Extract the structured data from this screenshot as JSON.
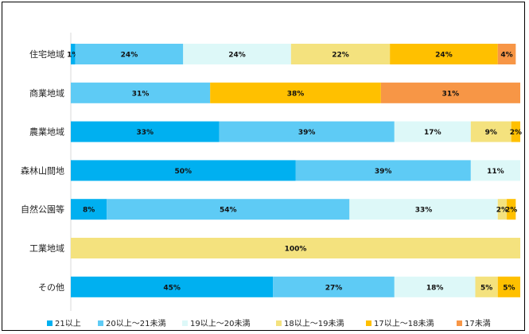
{
  "chart_data": {
    "type": "bar",
    "orientation": "horizontal",
    "stacked": "percent",
    "categories": [
      "住宅地域",
      "商業地域",
      "農業地域",
      "森林山間地",
      "自然公園等",
      "工業地域",
      "その他"
    ],
    "series": [
      {
        "name": "21以上",
        "color": "#00B0F0",
        "values": [
          1,
          0,
          33,
          50,
          8,
          0,
          45
        ]
      },
      {
        "name": "20以上～21未満",
        "color": "#5ECBF5",
        "values": [
          24,
          31,
          39,
          39,
          54,
          0,
          27
        ]
      },
      {
        "name": "19以上～20未満",
        "color": "#DDF8F8",
        "values": [
          24,
          0,
          17,
          11,
          33,
          0,
          18
        ]
      },
      {
        "name": "18以上～19未満",
        "color": "#F4E27E",
        "values": [
          22,
          0,
          9,
          0,
          2,
          100,
          5
        ]
      },
      {
        "name": "17以上～18未満",
        "color": "#FFC000",
        "values": [
          24,
          38,
          2,
          0,
          2,
          0,
          5
        ]
      },
      {
        "name": "17未満",
        "color": "#F79646",
        "values": [
          4,
          31,
          0,
          0,
          0,
          0,
          0
        ]
      }
    ],
    "xlim": [
      0,
      100
    ],
    "grid": false,
    "legend_position": "bottom",
    "title": ""
  }
}
